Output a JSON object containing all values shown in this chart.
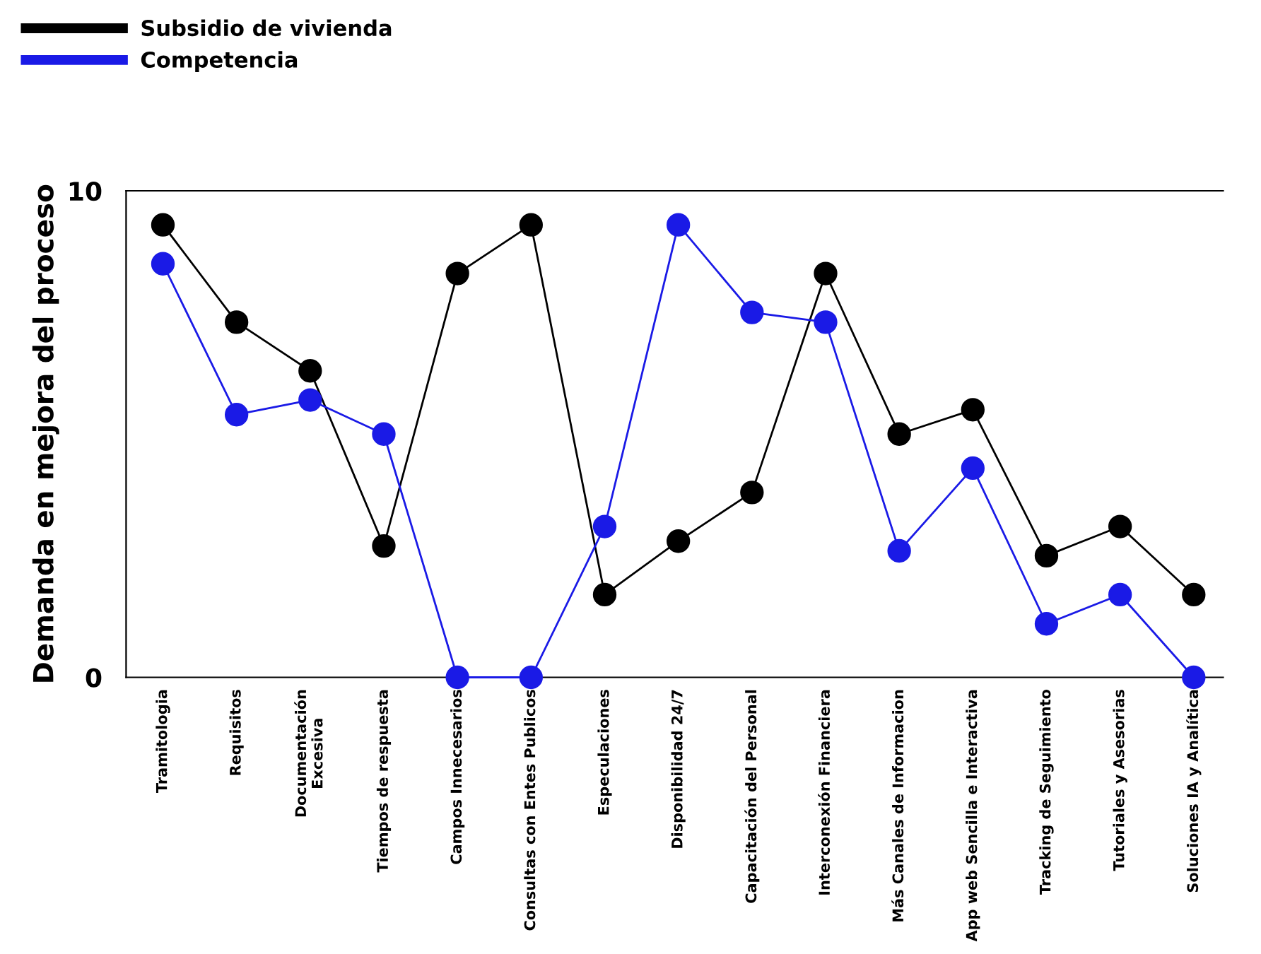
{
  "chart_data": {
    "type": "line",
    "ylabel": "Demanda en mejora del proceso",
    "categories": [
      "Tramitologia",
      "Requisitos",
      "Documentación\nExcesiva",
      "Tiempos de respuesta",
      "Campos Innecesarios",
      "Consultas con Entes Publicos",
      "Especulaciones",
      "Disponibilidad 24/7",
      "Capacitación del Personal",
      "Interconexión Financiera",
      "Más Canales de Informacion",
      "App web Sencilla e Interactiva",
      "Tracking de Seguimiento",
      "Tutoriales y Asesorias",
      "Soluciones IA y Analítica"
    ],
    "series": [
      {
        "name": "Subsidio de vivienda",
        "color": "#000000",
        "values": [
          9.3,
          7.3,
          6.3,
          2.7,
          8.3,
          9.3,
          1.7,
          2.8,
          3.8,
          8.3,
          5.0,
          5.5,
          2.5,
          3.1,
          1.7
        ]
      },
      {
        "name": "Competencia",
        "color": "#1a1ae6",
        "values": [
          8.5,
          5.4,
          5.7,
          5.0,
          0,
          0,
          3.1,
          9.3,
          7.5,
          7.3,
          2.6,
          4.3,
          1.1,
          1.7,
          0
        ]
      }
    ],
    "ylim": [
      0,
      10
    ],
    "yticks": [
      0,
      10
    ],
    "grid": false,
    "legend": "top left",
    "marker": "circle",
    "line_style": "solid"
  }
}
